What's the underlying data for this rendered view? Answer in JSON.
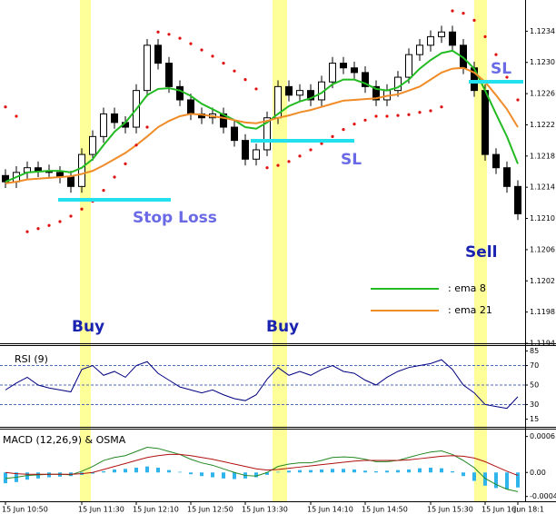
{
  "chart_data": [
    {
      "type": "candlestick",
      "categories": [
        "15 Jun 10:50",
        null,
        null,
        null,
        null,
        null,
        null,
        "15 Jun 11:30",
        null,
        null,
        null,
        null,
        "15 Jun 12:10",
        null,
        null,
        null,
        null,
        "15 Jun 12:50",
        null,
        null,
        null,
        null,
        "15 Jun 13:30",
        null,
        null,
        null,
        null,
        null,
        "15 Jun 14:10",
        null,
        null,
        null,
        null,
        "15 Jun 14:50",
        null,
        null,
        null,
        null,
        null,
        "15 Jun 15:30",
        null,
        null,
        null,
        null,
        "15 Jun 16:",
        null,
        null,
        "Jun 18:1"
      ],
      "open": [
        1.12155,
        1.12147,
        1.12159,
        1.12165,
        1.12161,
        1.12159,
        1.12153,
        1.12141,
        1.12182,
        1.12205,
        1.12234,
        1.12223,
        1.12217,
        1.12264,
        1.12322,
        1.12299,
        1.12269,
        1.12252,
        1.12234,
        1.12229,
        1.12234,
        1.12217,
        1.122,
        1.12176,
        1.12188,
        1.12229,
        1.12269,
        1.12258,
        1.12264,
        1.12252,
        1.12275,
        1.12299,
        1.12293,
        1.12287,
        1.12269,
        1.12252,
        1.12264,
        1.12281,
        1.1231,
        1.12322,
        1.12333,
        1.12339,
        1.12322,
        1.12293,
        1.12264,
        1.12182,
        1.12165,
        1.12141
      ],
      "high": [
        1.12163,
        1.12167,
        1.12173,
        1.12173,
        1.12169,
        1.12167,
        1.12161,
        1.1219,
        1.12213,
        1.12242,
        1.12242,
        1.12231,
        1.12272,
        1.1233,
        1.1233,
        1.12307,
        1.12277,
        1.1226,
        1.12242,
        1.12242,
        1.12242,
        1.12225,
        1.12208,
        1.12196,
        1.12237,
        1.12277,
        1.12277,
        1.12272,
        1.12272,
        1.12283,
        1.12307,
        1.12307,
        1.12301,
        1.12295,
        1.12277,
        1.12272,
        1.12289,
        1.12318,
        1.1233,
        1.12341,
        1.12347,
        1.12347,
        1.1233,
        1.12301,
        1.12272,
        1.1219,
        1.12173,
        1.12149
      ],
      "low": [
        1.12139,
        1.12139,
        1.12151,
        1.12153,
        1.12151,
        1.12145,
        1.12133,
        1.12133,
        1.12174,
        1.12197,
        1.12215,
        1.12209,
        1.12209,
        1.12256,
        1.12291,
        1.12261,
        1.12244,
        1.12226,
        1.12221,
        1.12221,
        1.12209,
        1.12192,
        1.12168,
        1.12168,
        1.1218,
        1.12221,
        1.1225,
        1.1225,
        1.12244,
        1.12244,
        1.12267,
        1.12285,
        1.12279,
        1.12261,
        1.12244,
        1.12244,
        1.12256,
        1.12273,
        1.12302,
        1.12314,
        1.12325,
        1.12314,
        1.12285,
        1.12256,
        1.12174,
        1.12157,
        1.12133,
        1.12098
      ],
      "close": [
        1.12147,
        1.12159,
        1.12165,
        1.12161,
        1.12159,
        1.12153,
        1.12141,
        1.12182,
        1.12205,
        1.12234,
        1.12223,
        1.12217,
        1.12264,
        1.12322,
        1.12299,
        1.12269,
        1.12252,
        1.12234,
        1.12229,
        1.12234,
        1.12217,
        1.122,
        1.12176,
        1.12188,
        1.12229,
        1.12269,
        1.12258,
        1.12264,
        1.12252,
        1.12275,
        1.12299,
        1.12293,
        1.12287,
        1.12269,
        1.12252,
        1.12264,
        1.12281,
        1.1231,
        1.12322,
        1.12333,
        1.12339,
        1.12322,
        1.12293,
        1.12264,
        1.12182,
        1.12165,
        1.12141,
        1.12106
      ],
      "up_color": "#ffffff",
      "down_color": "#000000",
      "overlays": [
        {
          "name": ": ema 8",
          "color": "#22bb22",
          "values": [
            1.12147,
            1.12153,
            1.12159,
            1.1216,
            1.12161,
            1.12161,
            1.12159,
            1.12165,
            1.12176,
            1.12194,
            1.12211,
            1.12223,
            1.1224,
            1.12258,
            1.12266,
            1.12267,
            1.12264,
            1.12257,
            1.12247,
            1.1224,
            1.12233,
            1.12226,
            1.12217,
            1.12215,
            1.12223,
            1.12234,
            1.12244,
            1.1225,
            1.12254,
            1.12261,
            1.12272,
            1.12278,
            1.12278,
            1.12273,
            1.12266,
            1.12264,
            1.12268,
            1.12278,
            1.12292,
            1.12303,
            1.12312,
            1.12315,
            1.12306,
            1.12292,
            1.12264,
            1.12234,
            1.12205,
            1.1217
          ]
        },
        {
          "name": ": ema 21",
          "color": "#f08c28",
          "values": [
            1.12145,
            1.12147,
            1.1215,
            1.12151,
            1.12152,
            1.12153,
            1.12154,
            1.12157,
            1.12161,
            1.12168,
            1.12176,
            1.12184,
            1.12194,
            1.12205,
            1.12217,
            1.12225,
            1.12231,
            1.12234,
            1.12233,
            1.12231,
            1.12229,
            1.12226,
            1.12223,
            1.12222,
            1.12225,
            1.12229,
            1.12232,
            1.12236,
            1.12239,
            1.12243,
            1.12247,
            1.12251,
            1.12252,
            1.12253,
            1.12254,
            1.12257,
            1.12259,
            1.12264,
            1.12269,
            1.12278,
            1.12287,
            1.12292,
            1.12293,
            1.12287,
            1.12275,
            1.12258,
            1.1224,
            1.12217
          ]
        }
      ],
      "dots": {
        "color": "#e01010",
        "values": [
          1.12243,
          1.12231,
          1.12083,
          1.12087,
          1.12091,
          1.12096,
          1.12103,
          1.12112,
          1.12122,
          1.12136,
          1.12153,
          1.1217,
          1.12194,
          1.12217,
          1.12339,
          1.12336,
          1.12331,
          1.12324,
          1.12316,
          1.12308,
          1.12299,
          1.12289,
          1.12278,
          1.12266,
          1.12165,
          1.12168,
          1.12173,
          1.1218,
          1.12188,
          1.12196,
          1.12205,
          1.12214,
          1.12221,
          1.12226,
          1.12231,
          1.12231,
          1.12232,
          1.12233,
          1.12236,
          1.12238,
          1.12243,
          1.12366,
          1.12363,
          1.12354,
          1.12333,
          1.1231,
          1.12281,
          1.12252
        ]
      },
      "ylim": [
        1.1194,
        1.1238
      ],
      "yticks": [
        1.1194,
        1.1198,
        1.1202,
        1.1206,
        {
          "value": 1.121,
          "label": "1.1210"
        },
        1.1214,
        1.1218,
        1.1222,
        1.1226,
        {
          "value": 1.123,
          "label": "1.1230"
        },
        1.1234
      ],
      "annotations": [
        "Buy",
        "Buy",
        "Sell",
        "Stop Loss",
        "SL",
        "SL"
      ]
    },
    {
      "type": "line",
      "title": "RSI (9)",
      "series": [
        {
          "color": "#000080",
          "values": [
            45,
            52,
            58,
            50,
            47,
            45,
            43,
            66,
            70,
            60,
            64,
            58,
            70,
            74,
            62,
            55,
            48,
            45,
            42,
            45,
            40,
            36,
            34,
            40,
            56,
            68,
            60,
            64,
            60,
            66,
            70,
            64,
            62,
            55,
            50,
            58,
            64,
            68,
            70,
            72,
            76,
            66,
            50,
            42,
            30,
            28,
            26,
            38
          ]
        }
      ],
      "ylim": [
        9,
        91
      ],
      "yticks": [
        85,
        70,
        50,
        30,
        15
      ],
      "levels": [
        70,
        50,
        30
      ]
    },
    {
      "type": "macd",
      "title": "MACD (12,26,9) & OSMA",
      "histogram": {
        "color": "#30b4ec",
        "values": [
          -0.00018,
          -0.00016,
          -0.00012,
          -0.0001,
          -8e-05,
          -7e-05,
          -6e-05,
          -4e-05,
          -2e-05,
          2e-05,
          5e-05,
          6e-05,
          8e-05,
          0.0001,
          8e-05,
          4e-05,
          1e-05,
          -3e-05,
          -6e-05,
          -8e-05,
          -0.0001,
          -0.00011,
          -0.0001,
          -8e-05,
          -4e-05,
          1e-05,
          3e-05,
          4e-05,
          4e-05,
          5e-05,
          6e-05,
          6e-05,
          5e-05,
          3e-05,
          2e-05,
          3e-05,
          4e-05,
          5e-05,
          7e-05,
          8e-05,
          7e-05,
          2e-05,
          -6e-05,
          -0.00014,
          -0.00022,
          -0.00026,
          -0.00028,
          -0.00025
        ]
      },
      "series": [
        {
          "color": "#228822",
          "values": [
            -0.0001,
            -8e-05,
            -5e-05,
            -4e-05,
            -3e-05,
            -3e-05,
            -4e-05,
            2e-05,
            0.0001,
            0.0002,
            0.00025,
            0.00028,
            0.00035,
            0.00042,
            0.0004,
            0.00035,
            0.0003,
            0.00022,
            0.00016,
            0.00012,
            6e-05,
            0,
            -5e-05,
            -6e-05,
            0,
            0.0001,
            0.00014,
            0.00016,
            0.00016,
            0.0002,
            0.00025,
            0.00026,
            0.00025,
            0.00022,
            0.00018,
            0.00018,
            0.0002,
            0.00025,
            0.0003,
            0.00034,
            0.00036,
            0.0003,
            0.0002,
            8e-05,
            -0.0001,
            -0.0002,
            -0.00028,
            -0.00032
          ]
        },
        {
          "color": "#b01010",
          "values": [
            0,
            -2e-05,
            -3e-05,
            -3e-05,
            -3e-05,
            -3e-05,
            -3e-05,
            -2e-05,
            0,
            5e-05,
            0.0001,
            0.00015,
            0.0002,
            0.00025,
            0.00028,
            0.0003,
            0.0003,
            0.00028,
            0.00025,
            0.00022,
            0.00018,
            0.00014,
            0.0001,
            6e-05,
            4e-05,
            5e-05,
            7e-05,
            9e-05,
            0.00011,
            0.00013,
            0.00015,
            0.00017,
            0.00019,
            0.0002,
            0.0002,
            0.0002,
            0.0002,
            0.00021,
            0.00023,
            0.00025,
            0.00027,
            0.00028,
            0.00027,
            0.00024,
            0.00018,
            0.0001,
            2e-05,
            -5e-05
          ]
        }
      ],
      "ylim": [
        -0.00045,
        0.0007
      ],
      "yticks": [
        0.0006,
        {
          "value": 0,
          "label": "0.00"
        },
        -0.0004
      ]
    }
  ]
}
